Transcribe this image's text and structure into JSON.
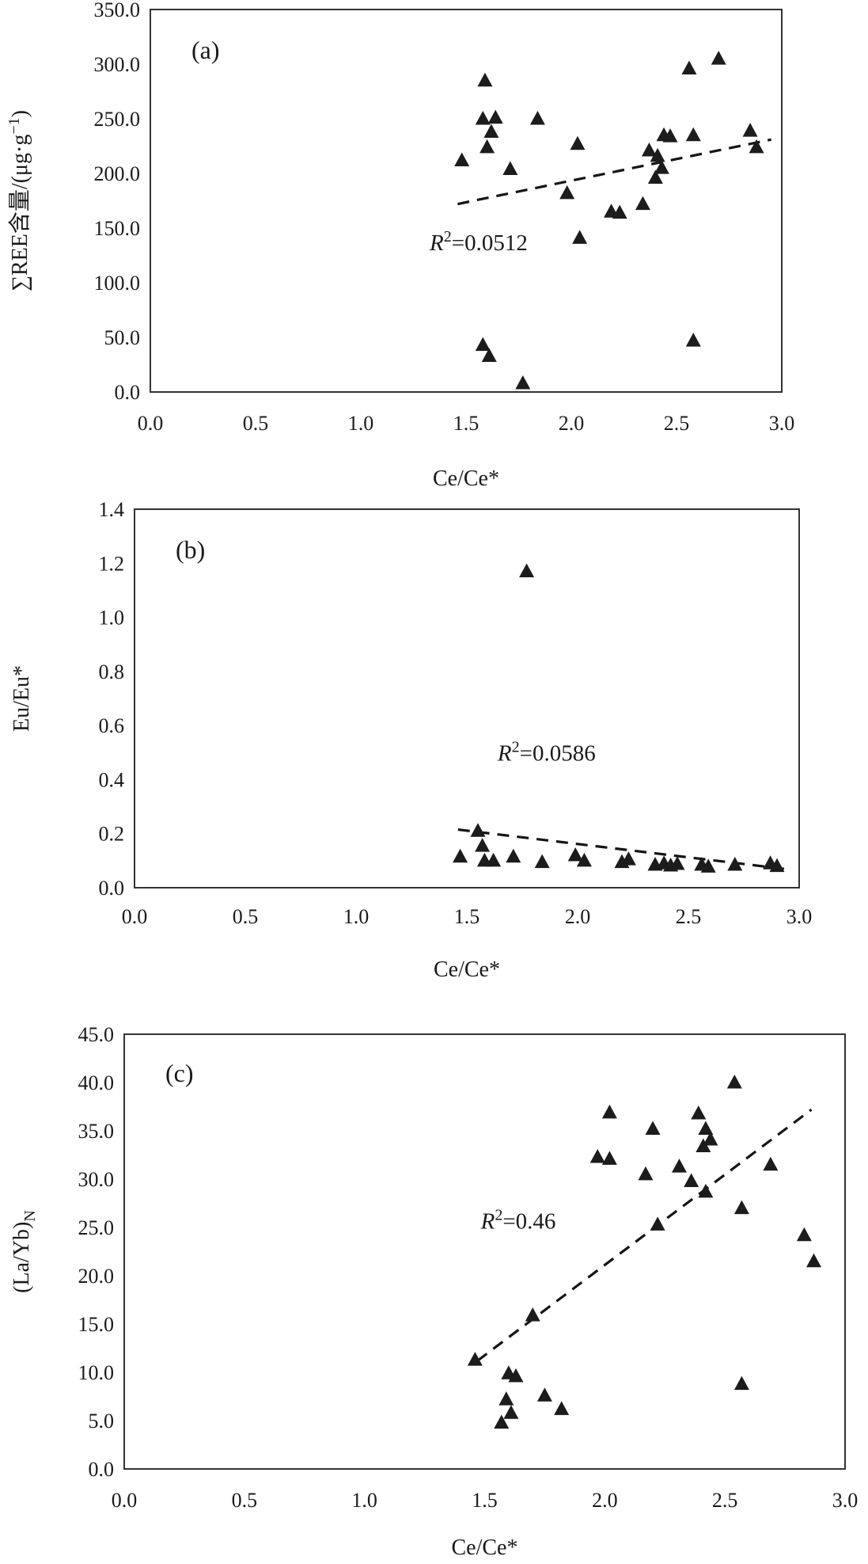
{
  "figure": {
    "background": "#ffffff",
    "marker": {
      "shape": "triangle-up",
      "fill": "#1c1c1c"
    },
    "trend_style": {
      "color": "#151515",
      "dash": "dashed"
    },
    "axis_color": "#333333"
  },
  "chart_data": [
    {
      "id": "a",
      "type": "scatter",
      "panel_label": "(a)",
      "xlabel": "Ce/Ce*",
      "ylabel": {
        "pre": "∑REE含量/(μg·g",
        "sup": "−1",
        "post": ")"
      },
      "xlim": [
        0.0,
        3.0
      ],
      "xstep": 0.5,
      "ylim": [
        0.0,
        350.0
      ],
      "ystep": 50.0,
      "x_tick_labels": [
        "0.0",
        "0.5",
        "1.0",
        "1.5",
        "2.0",
        "2.5",
        "3.0"
      ],
      "y_tick_labels": [
        "0.0",
        "50.0",
        "100.0",
        "150.0",
        "200.0",
        "250.0",
        "300.0",
        "350.0"
      ],
      "grid": false,
      "legend": null,
      "r2": {
        "var": "R",
        "sup": "2",
        "rest": "=0.0512",
        "x": 1.56,
        "y": 137
      },
      "trend": {
        "x1": 1.46,
        "y1": 172,
        "x2": 2.95,
        "y2": 231
      },
      "points": [
        [
          1.48,
          212
        ],
        [
          1.59,
          285
        ],
        [
          1.58,
          250
        ],
        [
          1.64,
          251
        ],
        [
          1.62,
          238
        ],
        [
          1.6,
          224
        ],
        [
          1.71,
          204
        ],
        [
          1.84,
          250
        ],
        [
          1.98,
          182
        ],
        [
          2.03,
          227
        ],
        [
          2.04,
          141
        ],
        [
          2.19,
          165
        ],
        [
          2.23,
          164
        ],
        [
          2.34,
          172
        ],
        [
          2.37,
          221
        ],
        [
          2.41,
          216
        ],
        [
          2.43,
          205
        ],
        [
          2.4,
          196
        ],
        [
          2.44,
          235
        ],
        [
          2.47,
          234
        ],
        [
          2.58,
          235
        ],
        [
          2.56,
          296
        ],
        [
          2.7,
          305
        ],
        [
          2.85,
          239
        ],
        [
          2.88,
          224
        ],
        [
          1.58,
          43
        ],
        [
          1.61,
          33
        ],
        [
          1.77,
          8
        ],
        [
          2.58,
          47
        ]
      ]
    },
    {
      "id": "b",
      "type": "scatter",
      "panel_label": "(b)",
      "xlabel": "Ce/Ce*",
      "ylabel": {
        "pre": "Eu/Eu*",
        "sup": "",
        "post": ""
      },
      "xlim": [
        0.0,
        3.0
      ],
      "xstep": 0.5,
      "ylim": [
        0.0,
        1.4
      ],
      "ystep": 0.2,
      "x_tick_labels": [
        "0.0",
        "0.5",
        "1.0",
        "1.5",
        "2.0",
        "2.5",
        "3.0"
      ],
      "y_tick_labels": [
        "0.0",
        "0.2",
        "0.4",
        "0.6",
        "0.8",
        "1.0",
        "1.2",
        "1.4"
      ],
      "grid": false,
      "legend": null,
      "r2": {
        "var": "R",
        "sup": "2",
        "rest": "=0.0586",
        "x": 1.86,
        "y": 0.5
      },
      "trend": {
        "x1": 1.46,
        "y1": 0.215,
        "x2": 2.95,
        "y2": 0.068
      },
      "points": [
        [
          1.77,
          1.17
        ],
        [
          1.47,
          0.115
        ],
        [
          1.55,
          0.21
        ],
        [
          1.57,
          0.155
        ],
        [
          1.58,
          0.1
        ],
        [
          1.62,
          0.1
        ],
        [
          1.71,
          0.115
        ],
        [
          1.84,
          0.095
        ],
        [
          1.99,
          0.12
        ],
        [
          2.03,
          0.1
        ],
        [
          2.2,
          0.095
        ],
        [
          2.23,
          0.105
        ],
        [
          2.35,
          0.085
        ],
        [
          2.39,
          0.09
        ],
        [
          2.42,
          0.082
        ],
        [
          2.45,
          0.088
        ],
        [
          2.56,
          0.085
        ],
        [
          2.59,
          0.078
        ],
        [
          2.71,
          0.085
        ],
        [
          2.87,
          0.09
        ],
        [
          2.9,
          0.08
        ]
      ]
    },
    {
      "id": "c",
      "type": "scatter",
      "panel_label": "(c)",
      "xlabel": "Ce/Ce*",
      "ylabel": {
        "pre": "(La/Yb)",
        "sub": "N",
        "post": ""
      },
      "xlim": [
        0.0,
        3.0
      ],
      "xstep": 0.5,
      "ylim": [
        0.0,
        45.0
      ],
      "ystep": 5.0,
      "x_tick_labels": [
        "0.0",
        "0.5",
        "1.0",
        "1.5",
        "2.0",
        "2.5",
        "3.0"
      ],
      "y_tick_labels": [
        "0.0",
        "5.0",
        "10.0",
        "15.0",
        "20.0",
        "25.0",
        "30.0",
        "35.0",
        "40.0",
        "45.0"
      ],
      "grid": false,
      "legend": null,
      "r2": {
        "var": "R",
        "sup": "2",
        "rest": "=0.46",
        "x": 1.64,
        "y": 25.7
      },
      "trend": {
        "x1": 1.47,
        "y1": 11.2,
        "x2": 2.86,
        "y2": 37.2
      },
      "points": [
        [
          1.46,
          11.3
        ],
        [
          1.6,
          9.9
        ],
        [
          1.63,
          9.6
        ],
        [
          1.59,
          7.2
        ],
        [
          1.61,
          5.8
        ],
        [
          1.57,
          4.8
        ],
        [
          1.75,
          7.6
        ],
        [
          1.82,
          6.2
        ],
        [
          1.7,
          15.9
        ],
        [
          1.97,
          32.3
        ],
        [
          2.02,
          32.1
        ],
        [
          2.02,
          36.9
        ],
        [
          2.17,
          30.5
        ],
        [
          2.2,
          35.2
        ],
        [
          2.22,
          25.3
        ],
        [
          2.31,
          31.3
        ],
        [
          2.36,
          29.8
        ],
        [
          2.39,
          36.8
        ],
        [
          2.42,
          35.2
        ],
        [
          2.44,
          34.1
        ],
        [
          2.41,
          33.4
        ],
        [
          2.42,
          28.7
        ],
        [
          2.54,
          40.0
        ],
        [
          2.57,
          27.0
        ],
        [
          2.57,
          8.8
        ],
        [
          2.69,
          31.5
        ],
        [
          2.83,
          24.2
        ],
        [
          2.87,
          21.5
        ]
      ]
    }
  ]
}
